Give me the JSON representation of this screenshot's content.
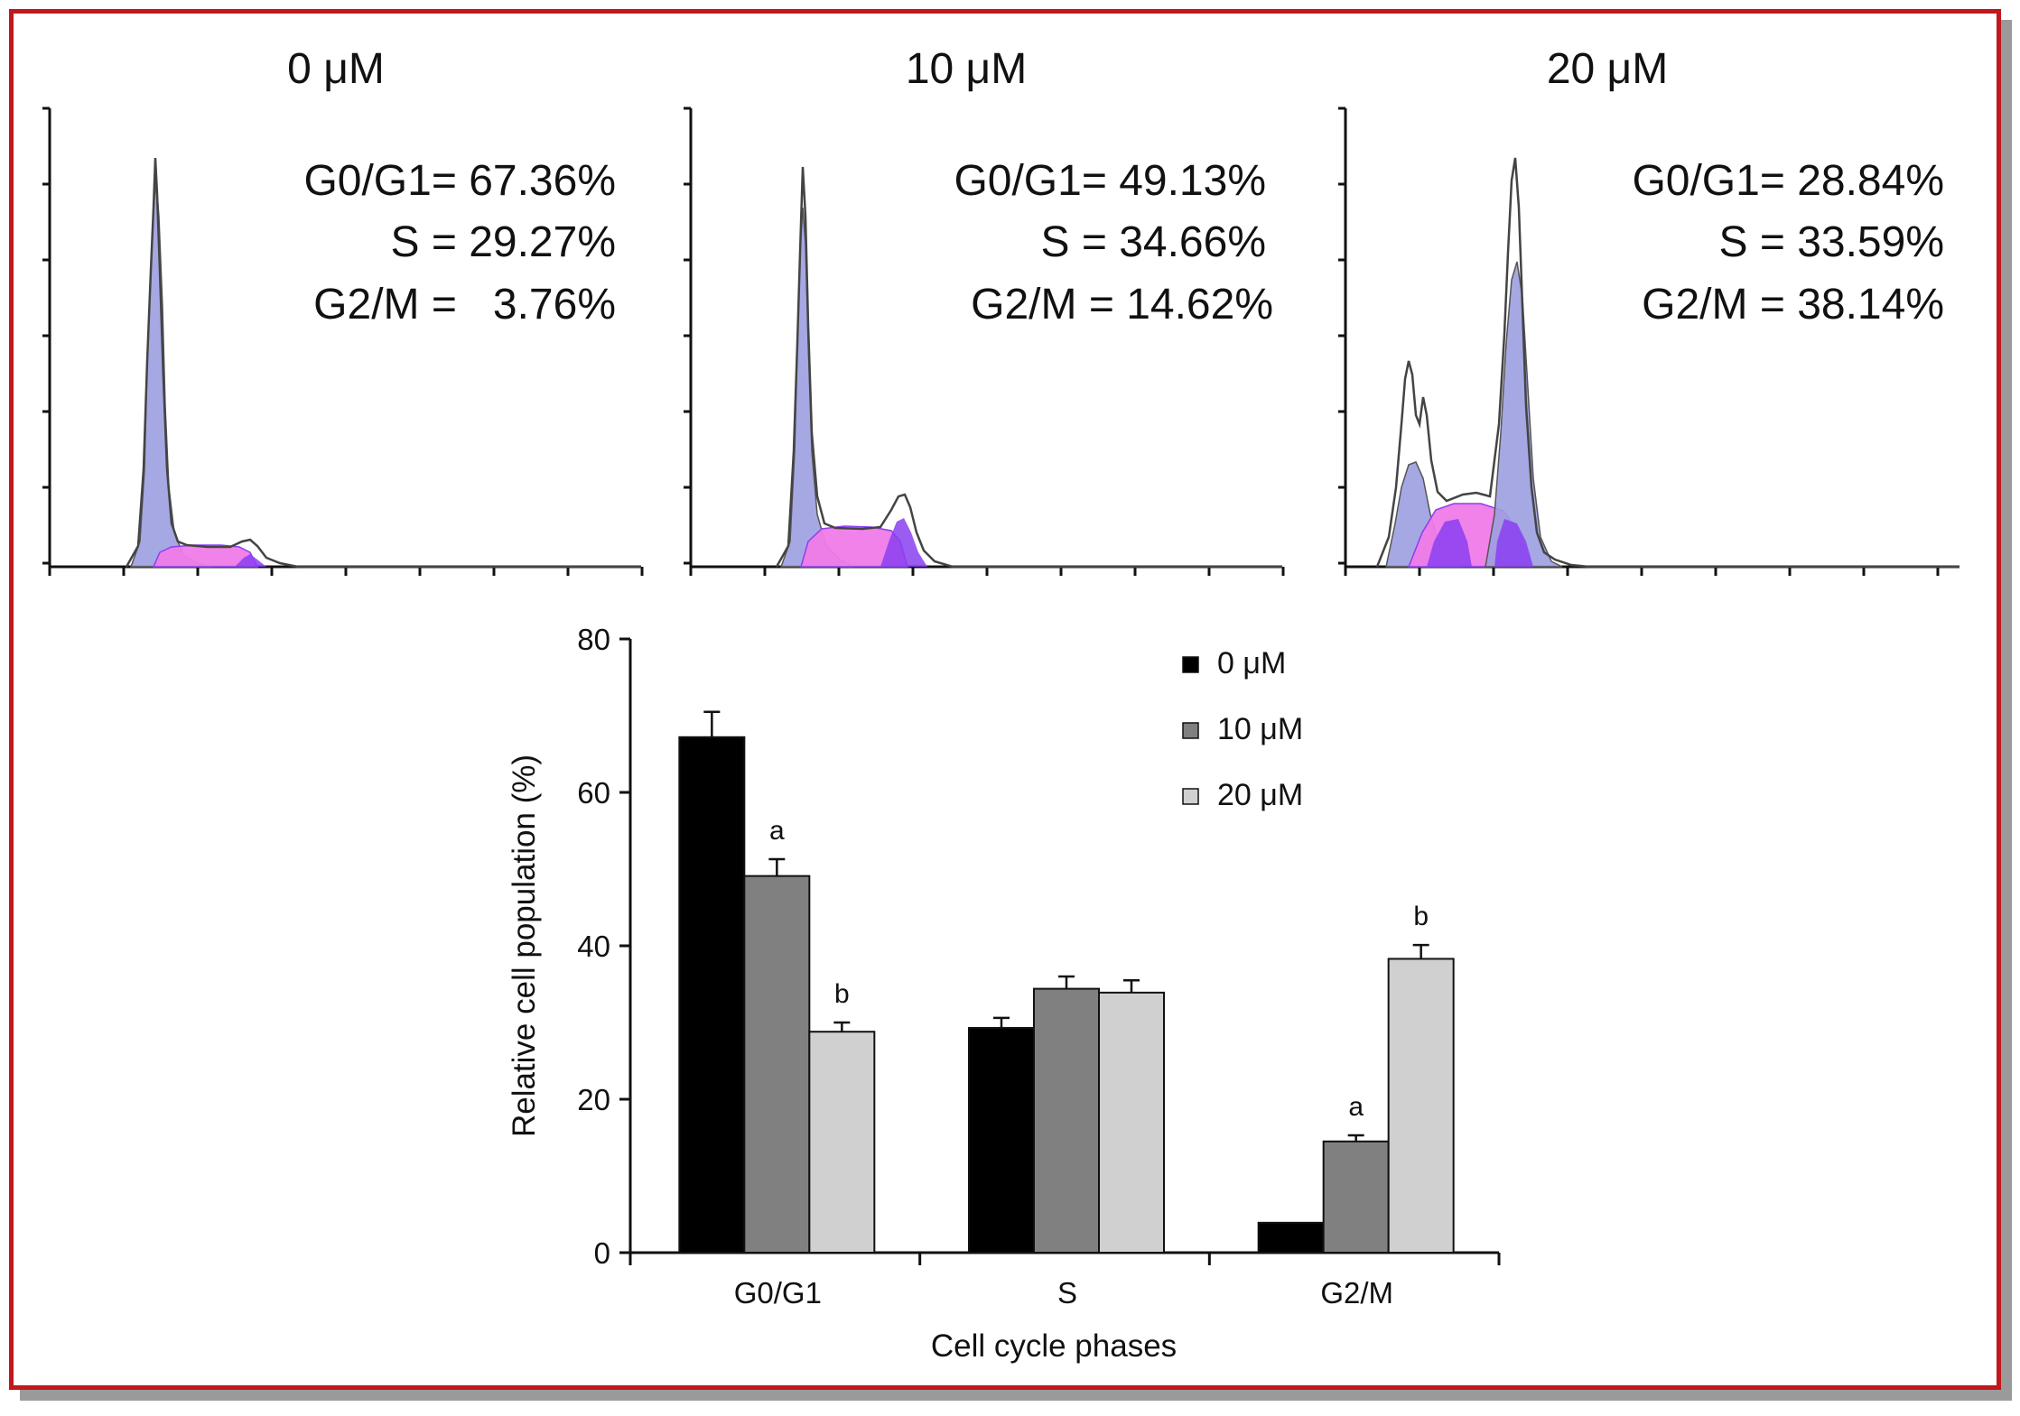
{
  "colors": {
    "frame": "#c0181c",
    "g1_fill": "#9c9ee0",
    "s_fill": "#f07be8",
    "g2_fill": "#9b6fe6",
    "overlap_fill": "#8a3ff0",
    "series_0": "#000000",
    "series_10": "#808080",
    "series_20": "#d0d0d0"
  },
  "histograms": [
    {
      "title": "0 μM",
      "stats": [
        "G0/G1= 67.36%",
        "S = 29.27%",
        "G2/M =   3.76%"
      ]
    },
    {
      "title": "10 μM",
      "stats": [
        "G0/G1= 49.13%",
        "S = 34.66%",
        "G2/M = 14.62%"
      ]
    },
    {
      "title": "20 μM",
      "stats": [
        "G0/G1= 28.84%",
        "S = 33.59%",
        "G2/M = 38.14%"
      ]
    }
  ],
  "chart_data": {
    "type": "bar",
    "categories": [
      "G0/G1",
      "S",
      "G2/M"
    ],
    "series": [
      {
        "name": "0 μM",
        "color": "#000000",
        "values": [
          67.2,
          29.3,
          3.9
        ],
        "errors": [
          3.3,
          1.3,
          0
        ],
        "annotations": [
          "",
          "",
          ""
        ]
      },
      {
        "name": "10 μM",
        "color": "#808080",
        "values": [
          49.1,
          34.4,
          14.5
        ],
        "errors": [
          2.2,
          1.6,
          0.8
        ],
        "annotations": [
          "a",
          "",
          "a"
        ]
      },
      {
        "name": "20 μM",
        "color": "#d0d0d0",
        "values": [
          28.8,
          33.9,
          38.3
        ],
        "errors": [
          1.2,
          1.6,
          1.8
        ],
        "annotations": [
          "b",
          "",
          "b"
        ]
      }
    ],
    "xlabel": "Cell cycle phases",
    "ylabel": "Relative cell population (%)",
    "ylim": [
      0,
      80
    ],
    "yticks": [
      "0",
      "20",
      "40",
      "60",
      "80"
    ],
    "legend_position": "top-right",
    "grid": false
  }
}
